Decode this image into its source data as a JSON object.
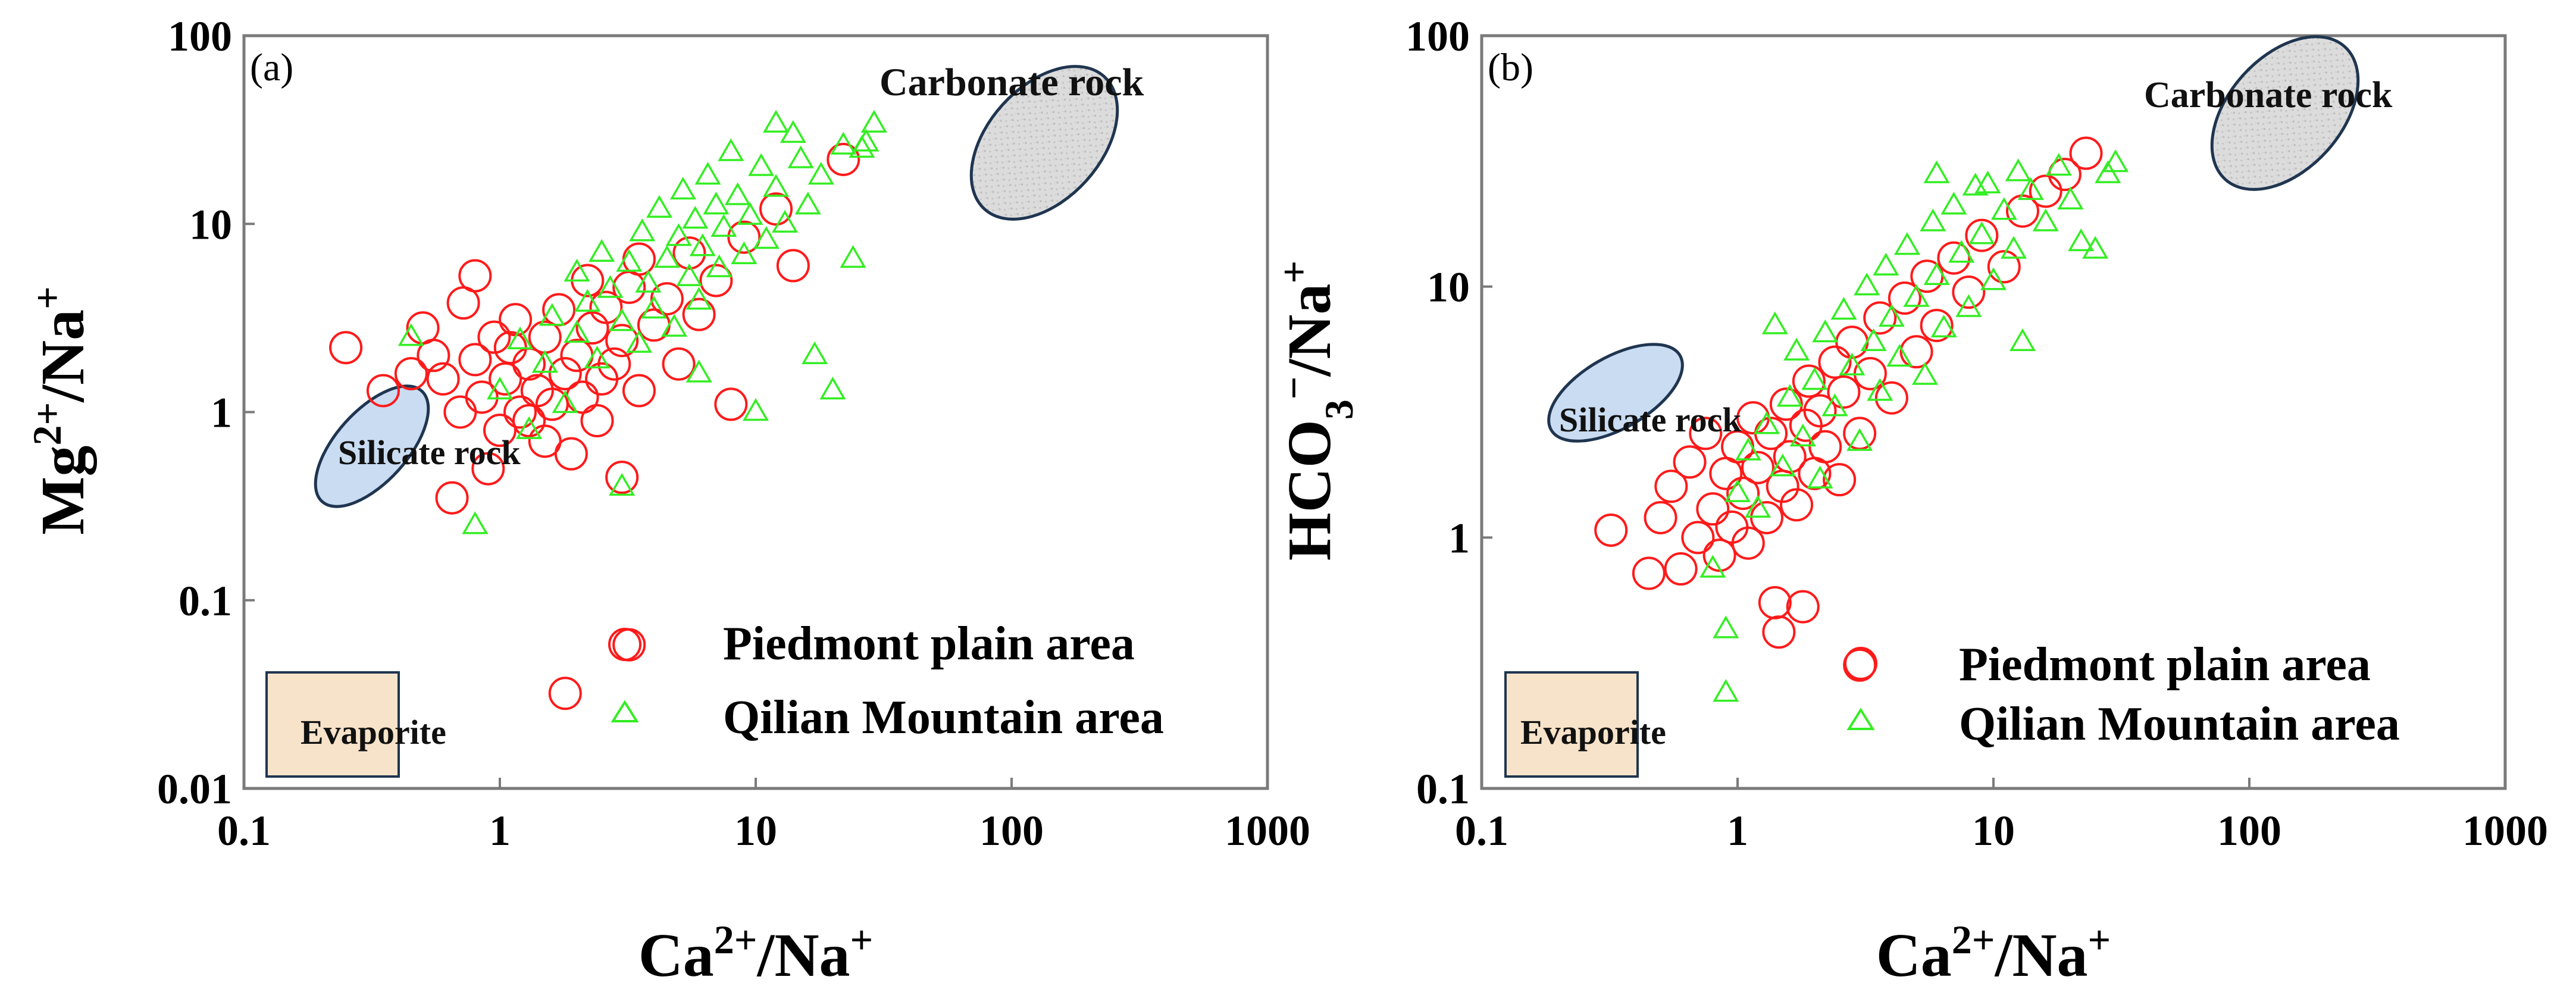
{
  "colors": {
    "piedmont": "#ff1a1a",
    "qilian": "#33ee22",
    "silicate_fill": "#c9dcf2",
    "carbonate_fill": "#d6d6d6",
    "evaporite_fill": "#f7e3c9",
    "region_stroke": "#1f3550"
  },
  "chart_data": [
    {
      "type": "scatter",
      "panel": "(a)",
      "xlabel": "Ca2+/Na+",
      "ylabel": "Mg2+/Na+",
      "xscale": "log",
      "yscale": "log",
      "xlim": [
        0.1,
        1000
      ],
      "ylim": [
        0.01,
        100
      ],
      "x_ticks": [
        "0.1",
        "1",
        "10",
        "100",
        "1000"
      ],
      "y_ticks": [
        "0.01",
        "0.1",
        "1",
        "10",
        "100"
      ],
      "regions": [
        {
          "name": "Carbonate rock",
          "shape": "ellipse"
        },
        {
          "name": "Silicate rock",
          "shape": "ellipse"
        },
        {
          "name": "Evaporite",
          "shape": "rect"
        }
      ],
      "legend": [
        {
          "label": "Piedmont plain area",
          "marker": "circle"
        },
        {
          "label": "Qilian Mountain area",
          "marker": "triangle"
        }
      ],
      "series": [
        {
          "name": "Piedmont plain area",
          "marker": "circle",
          "points": [
            [
              0.25,
              2.2
            ],
            [
              0.35,
              1.3
            ],
            [
              0.45,
              1.6
            ],
            [
              0.5,
              2.8
            ],
            [
              0.55,
              2.0
            ],
            [
              0.6,
              1.5
            ],
            [
              0.65,
              0.35
            ],
            [
              0.7,
              1.0
            ],
            [
              0.72,
              3.8
            ],
            [
              0.8,
              5.3
            ],
            [
              0.8,
              1.9
            ],
            [
              0.85,
              1.2
            ],
            [
              0.9,
              0.5
            ],
            [
              0.95,
              2.5
            ],
            [
              1.0,
              0.8
            ],
            [
              1.05,
              1.5
            ],
            [
              1.1,
              2.2
            ],
            [
              1.15,
              3.1
            ],
            [
              1.2,
              1.0
            ],
            [
              1.3,
              0.9
            ],
            [
              1.3,
              1.8
            ],
            [
              1.4,
              1.3
            ],
            [
              1.5,
              2.5
            ],
            [
              1.5,
              0.7
            ],
            [
              1.6,
              1.1
            ],
            [
              1.7,
              3.5
            ],
            [
              1.8,
              1.6
            ],
            [
              1.9,
              0.6
            ],
            [
              2.0,
              2.0
            ],
            [
              2.1,
              1.2
            ],
            [
              2.2,
              5.0
            ],
            [
              2.3,
              2.8
            ],
            [
              2.4,
              0.9
            ],
            [
              2.5,
              1.5
            ],
            [
              2.6,
              3.6
            ],
            [
              2.8,
              1.8
            ],
            [
              3.0,
              0.45
            ],
            [
              3.0,
              2.4
            ],
            [
              3.2,
              4.6
            ],
            [
              3.5,
              1.3
            ],
            [
              3.5,
              6.5
            ],
            [
              4.0,
              2.9
            ],
            [
              4.5,
              4.0
            ],
            [
              5.0,
              1.8
            ],
            [
              5.5,
              7.0
            ],
            [
              6.0,
              3.3
            ],
            [
              7.0,
              5.0
            ],
            [
              8.0,
              1.1
            ],
            [
              9.0,
              8.5
            ],
            [
              12.0,
              12.0
            ],
            [
              14.0,
              6.0
            ],
            [
              22.0,
              22.0
            ],
            [
              1.8,
              0.032
            ],
            [
              3.2,
              0.058
            ]
          ]
        },
        {
          "name": "Qilian Mountain area",
          "marker": "triangle",
          "points": [
            [
              0.8,
              0.25
            ],
            [
              1.0,
              1.3
            ],
            [
              1.2,
              2.4
            ],
            [
              1.3,
              0.8
            ],
            [
              1.5,
              1.8
            ],
            [
              1.6,
              3.2
            ],
            [
              1.8,
              1.1
            ],
            [
              2.0,
              2.6
            ],
            [
              2.0,
              5.5
            ],
            [
              2.2,
              3.8
            ],
            [
              2.4,
              1.9
            ],
            [
              2.5,
              7.0
            ],
            [
              2.7,
              4.5
            ],
            [
              3.0,
              3.0
            ],
            [
              3.0,
              0.4
            ],
            [
              3.2,
              6.2
            ],
            [
              3.5,
              2.3
            ],
            [
              3.6,
              9.0
            ],
            [
              3.8,
              4.8
            ],
            [
              4.0,
              3.5
            ],
            [
              4.2,
              12.0
            ],
            [
              4.5,
              6.5
            ],
            [
              4.8,
              2.8
            ],
            [
              5.0,
              8.5
            ],
            [
              5.2,
              15.0
            ],
            [
              5.5,
              5.2
            ],
            [
              5.8,
              10.5
            ],
            [
              6.0,
              3.9
            ],
            [
              6.2,
              7.5
            ],
            [
              6.5,
              18.0
            ],
            [
              7.0,
              12.5
            ],
            [
              7.2,
              5.8
            ],
            [
              7.5,
              9.5
            ],
            [
              8.0,
              24.0
            ],
            [
              8.5,
              14.0
            ],
            [
              9.0,
              6.8
            ],
            [
              9.5,
              11.0
            ],
            [
              10.0,
              1.0
            ],
            [
              10.5,
              20.0
            ],
            [
              11.0,
              8.2
            ],
            [
              12.0,
              15.5
            ],
            [
              13.0,
              10.0
            ],
            [
              14.0,
              30.0
            ],
            [
              15.0,
              22.0
            ],
            [
              16.0,
              12.5
            ],
            [
              17.0,
              2.0
            ],
            [
              18.0,
              18.0
            ],
            [
              20.0,
              1.3
            ],
            [
              22.0,
              26.0
            ],
            [
              24.0,
              6.5
            ],
            [
              27.0,
              27.0
            ],
            [
              29.0,
              34.0
            ],
            [
              0.45,
              2.5
            ],
            [
              6.0,
              1.6
            ],
            [
              12.0,
              34.0
            ],
            [
              26.0,
              25.0
            ]
          ]
        }
      ]
    },
    {
      "type": "scatter",
      "panel": "(b)",
      "xlabel": "Ca2+/Na+",
      "ylabel": "HCO3-/Na+",
      "xscale": "log",
      "yscale": "log",
      "xlim": [
        0.1,
        1000
      ],
      "ylim": [
        0.1,
        100
      ],
      "x_ticks": [
        "0.1",
        "1",
        "10",
        "100",
        "1000"
      ],
      "y_ticks": [
        "0.1",
        "1",
        "10",
        "100"
      ],
      "regions": [
        {
          "name": "Carbonate rock",
          "shape": "ellipse"
        },
        {
          "name": "Silicate rock",
          "shape": "ellipse"
        },
        {
          "name": "Evaporite",
          "shape": "rect"
        }
      ],
      "legend": [
        {
          "label": "Piedmont plain area",
          "marker": "circle"
        },
        {
          "label": "Qilian Mountain area",
          "marker": "triangle"
        }
      ],
      "series": [
        {
          "name": "Piedmont plain area",
          "marker": "circle",
          "points": [
            [
              0.32,
              1.07
            ],
            [
              0.45,
              0.72
            ],
            [
              0.5,
              1.2
            ],
            [
              0.55,
              1.6
            ],
            [
              0.6,
              0.75
            ],
            [
              0.65,
              2.0
            ],
            [
              0.7,
              1.0
            ],
            [
              0.75,
              2.6
            ],
            [
              0.8,
              1.3
            ],
            [
              0.85,
              0.85
            ],
            [
              0.9,
              1.8
            ],
            [
              0.95,
              1.1
            ],
            [
              1.0,
              2.3
            ],
            [
              1.05,
              1.5
            ],
            [
              1.1,
              0.95
            ],
            [
              1.15,
              3.0
            ],
            [
              1.2,
              1.9
            ],
            [
              1.3,
              1.2
            ],
            [
              1.35,
              2.6
            ],
            [
              1.4,
              0.55
            ],
            [
              1.45,
              0.42
            ],
            [
              1.5,
              1.6
            ],
            [
              1.55,
              3.4
            ],
            [
              1.6,
              2.1
            ],
            [
              1.7,
              1.35
            ],
            [
              1.8,
              0.53
            ],
            [
              1.85,
              2.8
            ],
            [
              1.9,
              4.2
            ],
            [
              2.0,
              1.8
            ],
            [
              2.1,
              3.2
            ],
            [
              2.2,
              2.3
            ],
            [
              2.4,
              5.0
            ],
            [
              2.5,
              1.7
            ],
            [
              2.6,
              3.8
            ],
            [
              2.8,
              6.0
            ],
            [
              3.0,
              2.6
            ],
            [
              3.0,
              0.31
            ],
            [
              3.3,
              4.5
            ],
            [
              3.6,
              7.5
            ],
            [
              4.0,
              3.6
            ],
            [
              4.5,
              9.0
            ],
            [
              5.0,
              5.5
            ],
            [
              5.5,
              11.0
            ],
            [
              6.0,
              7.0
            ],
            [
              7.0,
              13.0
            ],
            [
              8.0,
              9.5
            ],
            [
              9.0,
              16.0
            ],
            [
              11.0,
              12.0
            ],
            [
              13.0,
              20.0
            ],
            [
              16.0,
              24.0
            ],
            [
              19.0,
              28.0
            ],
            [
              23.0,
              34.0
            ]
          ]
        },
        {
          "name": "Qilian Mountain area",
          "marker": "triangle",
          "points": [
            [
              0.8,
              0.75
            ],
            [
              0.9,
              0.43
            ],
            [
              0.9,
              0.24
            ],
            [
              1.0,
              1.5
            ],
            [
              1.1,
              2.2
            ],
            [
              1.2,
              1.3
            ],
            [
              1.3,
              2.8
            ],
            [
              1.4,
              7.0
            ],
            [
              1.5,
              1.9
            ],
            [
              1.6,
              3.6
            ],
            [
              1.7,
              5.5
            ],
            [
              1.8,
              2.5
            ],
            [
              2.0,
              4.2
            ],
            [
              2.1,
              1.7
            ],
            [
              2.2,
              6.5
            ],
            [
              2.4,
              3.3
            ],
            [
              2.6,
              8.0
            ],
            [
              2.8,
              4.8
            ],
            [
              3.0,
              2.4
            ],
            [
              3.2,
              10.0
            ],
            [
              3.4,
              6.0
            ],
            [
              3.6,
              3.8
            ],
            [
              3.8,
              12.0
            ],
            [
              4.0,
              7.5
            ],
            [
              4.3,
              5.2
            ],
            [
              4.6,
              14.5
            ],
            [
              5.0,
              9.0
            ],
            [
              5.4,
              4.4
            ],
            [
              5.8,
              18.0
            ],
            [
              6.0,
              11.0
            ],
            [
              6.4,
              6.8
            ],
            [
              7.0,
              21.0
            ],
            [
              7.5,
              13.5
            ],
            [
              8.0,
              8.2
            ],
            [
              8.5,
              25.0
            ],
            [
              9.0,
              16.0
            ],
            [
              10.0,
              10.5
            ],
            [
              11.0,
              20.0
            ],
            [
              12.0,
              14.0
            ],
            [
              13.0,
              6.0
            ],
            [
              14.0,
              24.0
            ],
            [
              16.0,
              18.0
            ],
            [
              18.0,
              30.0
            ],
            [
              20.0,
              22.0
            ],
            [
              22.0,
              15.0
            ],
            [
              25.0,
              14.0
            ],
            [
              28.0,
              28.0
            ],
            [
              30.0,
              31.0
            ],
            [
              6.0,
              28.0
            ],
            [
              9.5,
              25.5
            ],
            [
              12.5,
              28.5
            ]
          ]
        }
      ]
    }
  ]
}
